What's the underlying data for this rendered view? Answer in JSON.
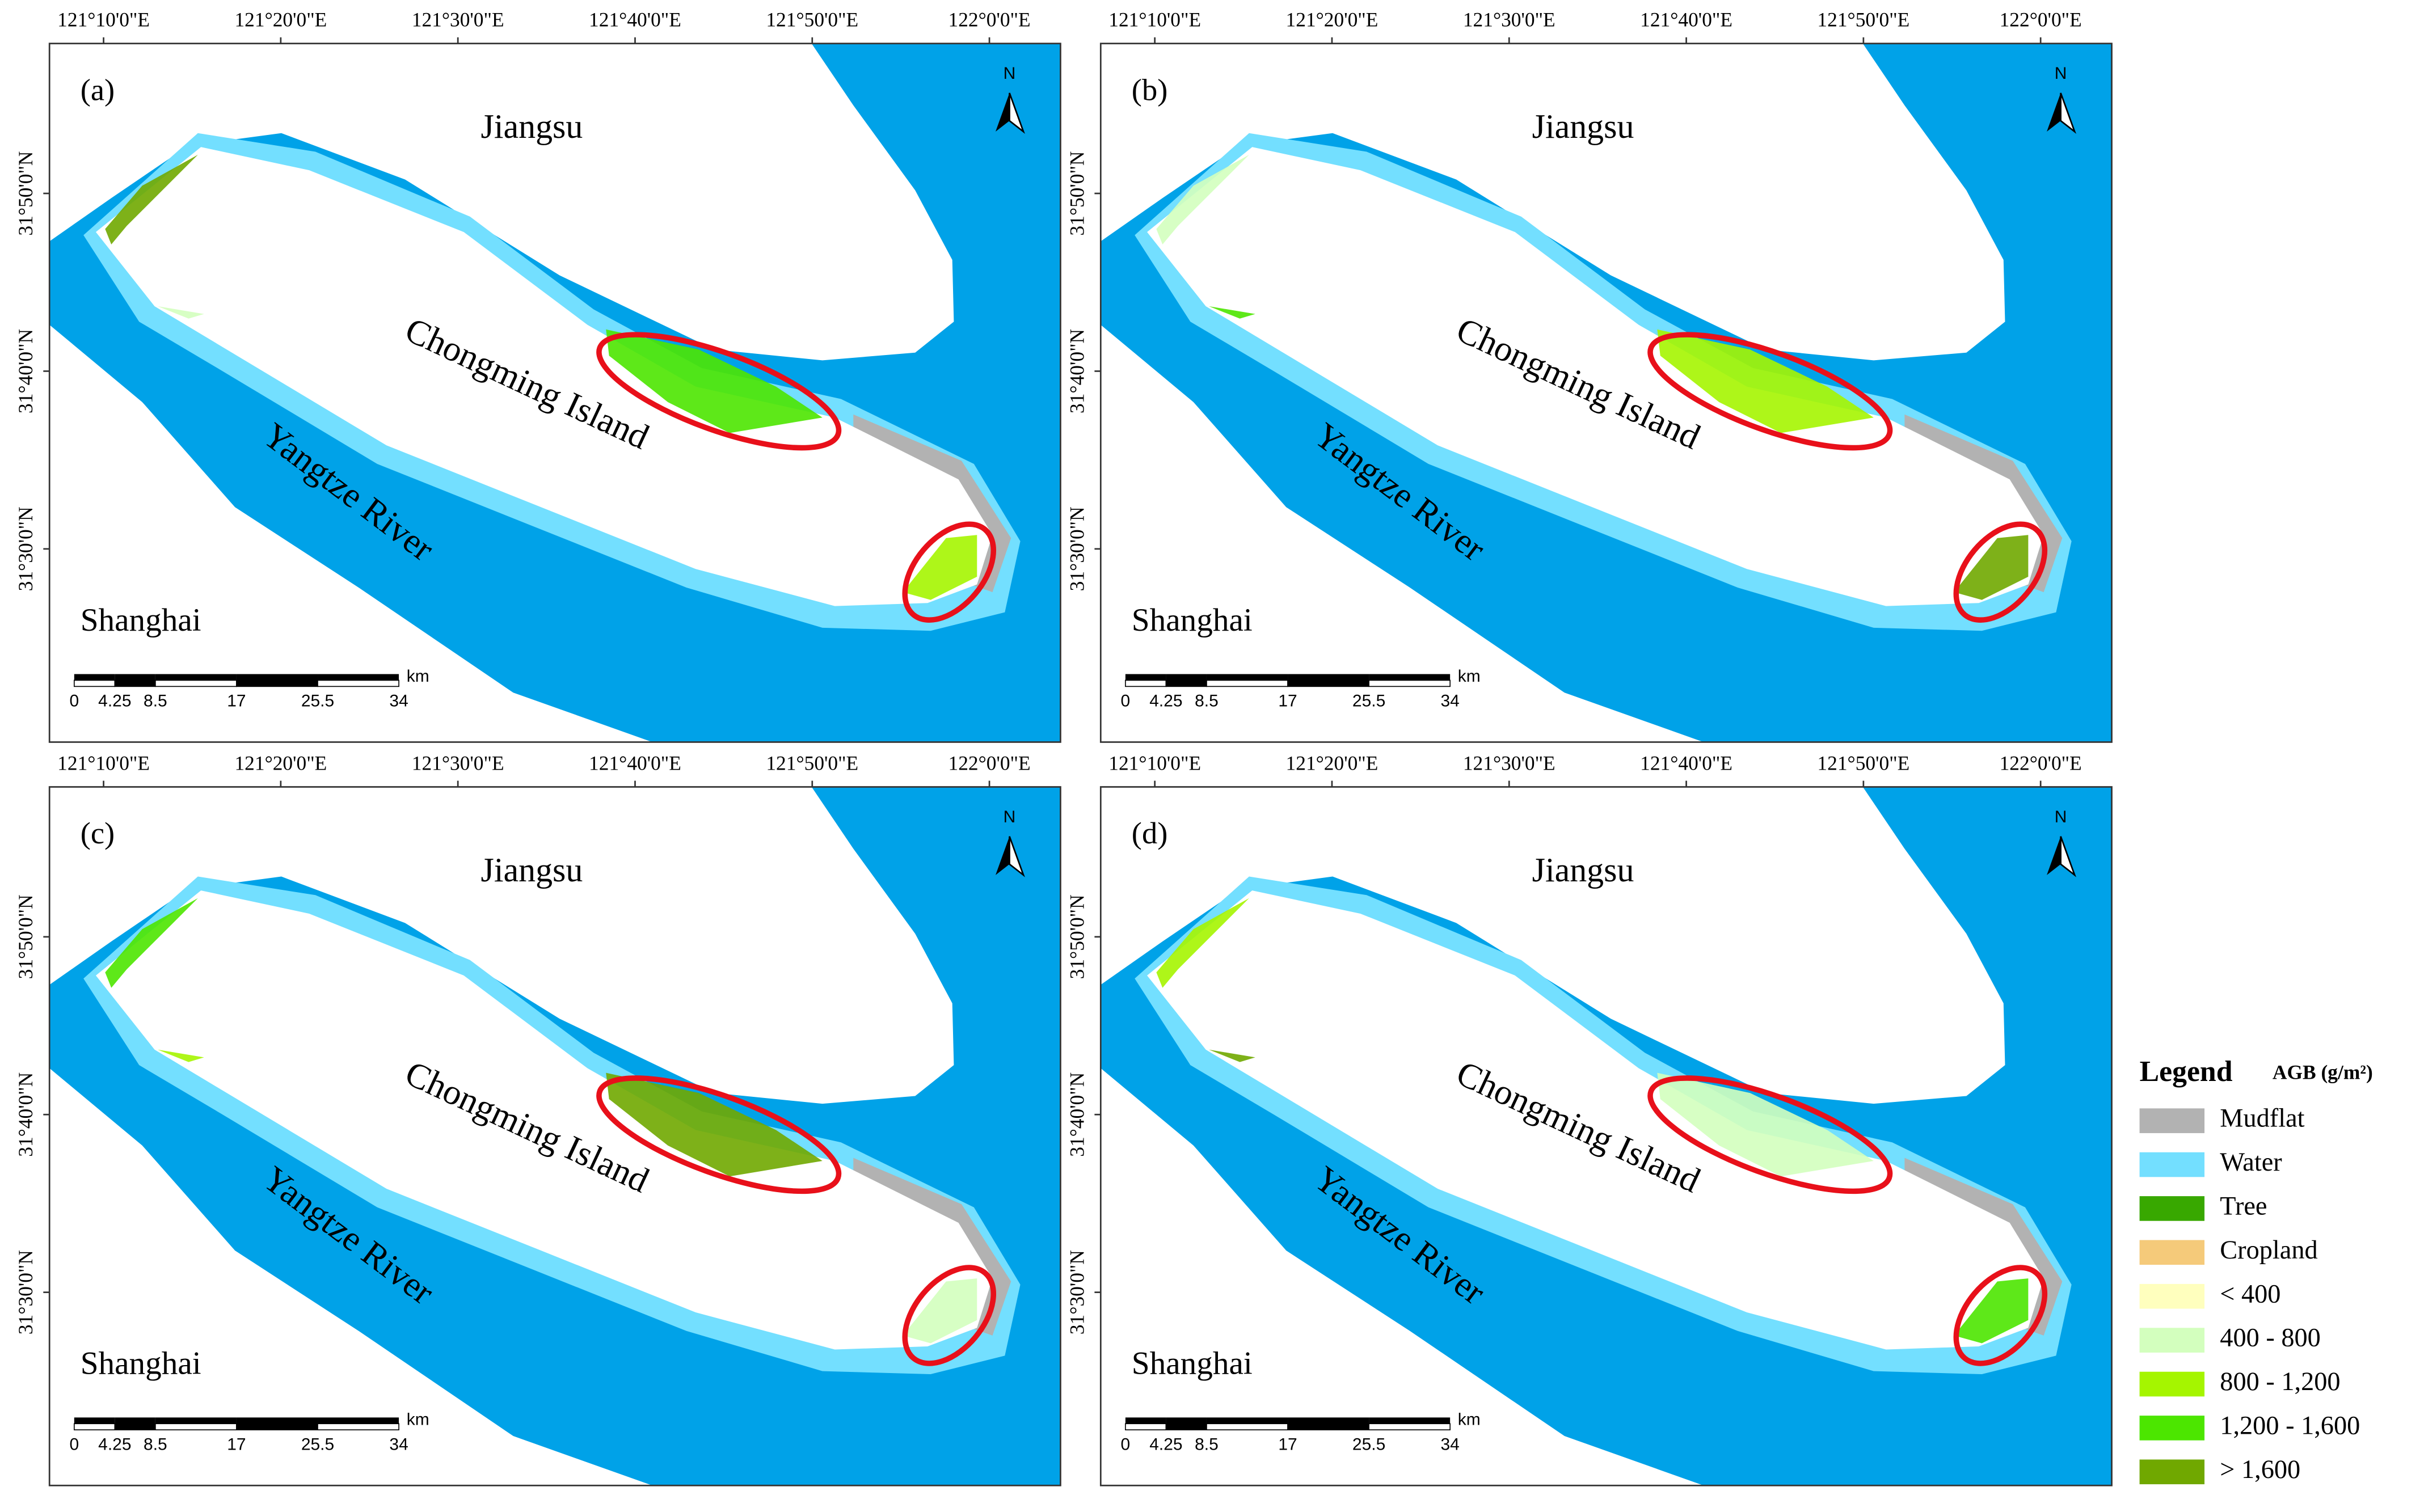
{
  "panels": [
    {
      "label": "(a)"
    },
    {
      "label": "(b)"
    },
    {
      "label": "(c)"
    },
    {
      "label": "(d)"
    }
  ],
  "map_labels": {
    "north_province": "Jiangsu",
    "island": "Chongming Island",
    "river": "Yangtze River",
    "south_city": "Shanghai"
  },
  "longitude_labels": [
    "121°10'0\"E",
    "121°20'0\"E",
    "121°30'0\"E",
    "121°40'0\"E",
    "121°50'0\"E",
    "122°0'0\"E"
  ],
  "latitude_labels": [
    "31°50'0\"N",
    "31°40'0\"N",
    "31°30'0\"N"
  ],
  "north_arrow": "N",
  "scale_bar": {
    "labels": [
      "0",
      "4.25",
      "8.5",
      "17",
      "25.5",
      "34"
    ],
    "unit": "km"
  },
  "legend": {
    "title": "Legend",
    "subtitle": "AGB (g/m²)",
    "items": [
      {
        "label": "Mudflat",
        "color": "#b2b2b2"
      },
      {
        "label": "Water",
        "color": "#73dfff"
      },
      {
        "label": "Tree",
        "color": "#38a800"
      },
      {
        "label": "Cropland",
        "color": "#f5ca7a"
      },
      {
        "label": "< 400",
        "color": "#ffffbe"
      },
      {
        "label": "400 - 800",
        "color": "#d3ffbe"
      },
      {
        "label": "800 - 1,200",
        "color": "#a5f500"
      },
      {
        "label": "1,200 - 1,600",
        "color": "#4ce600"
      },
      {
        "label": "> 1,600",
        "color": "#70a800"
      }
    ]
  }
}
